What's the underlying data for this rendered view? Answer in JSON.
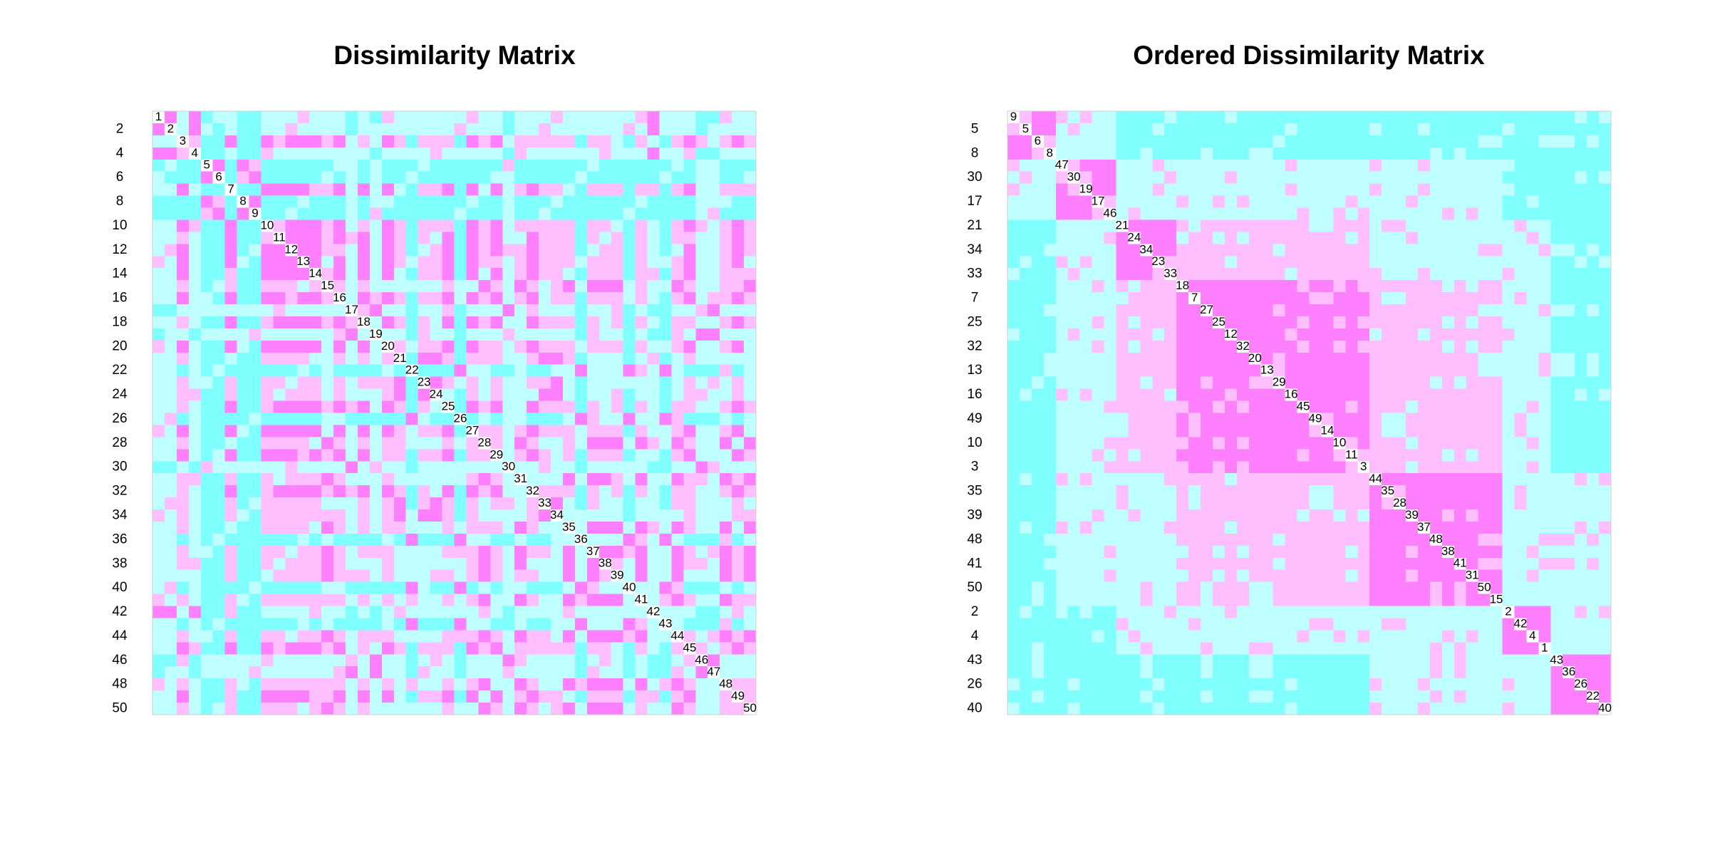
{
  "chart_data": [
    {
      "type": "dissplot",
      "title": "Dissimilarity Matrix",
      "labels": [
        1,
        2,
        3,
        4,
        5,
        6,
        7,
        8,
        9,
        10,
        11,
        12,
        13,
        14,
        15,
        16,
        17,
        18,
        19,
        20,
        21,
        22,
        23,
        24,
        25,
        26,
        27,
        28,
        29,
        30,
        31,
        32,
        33,
        34,
        35,
        36,
        37,
        38,
        39,
        40,
        41,
        42,
        43,
        44,
        45,
        46,
        47,
        48,
        49,
        50
      ],
      "colors": [
        "#ff80ff",
        "#ffbfff",
        "#bfffff",
        "#80ffff"
      ],
      "matrix": [
        [
          1,
          3,
          1,
          4,
          3,
          3,
          4,
          4,
          3,
          3,
          3,
          2,
          3,
          3,
          3,
          4,
          3,
          4,
          2,
          3,
          3,
          3,
          3,
          3,
          3,
          2,
          3,
          3,
          4,
          3,
          3,
          3,
          2,
          3,
          3,
          3,
          3,
          3,
          3,
          2,
          1,
          3,
          3,
          3,
          4,
          4,
          2,
          3,
          3
        ],
        [
          3,
          1,
          3,
          4,
          3,
          4,
          4,
          3,
          3,
          2,
          3,
          3,
          3,
          3,
          4,
          3,
          3,
          3,
          3,
          3,
          3,
          3,
          3,
          2,
          3,
          3,
          3,
          4,
          3,
          3,
          2,
          3,
          3,
          3,
          3,
          3,
          3,
          2,
          3,
          1,
          3,
          3,
          3,
          4,
          3,
          3,
          3,
          3
        ],
        [
          2,
          4,
          4,
          1,
          4,
          4,
          1,
          2,
          1,
          1,
          1,
          2,
          1,
          3,
          2,
          3,
          1,
          2,
          4,
          2,
          2,
          2,
          4,
          1,
          2,
          1,
          3,
          2,
          2,
          2,
          2,
          2,
          4,
          2,
          2,
          3,
          4,
          2,
          3,
          4,
          2,
          1,
          2,
          3,
          2,
          1,
          2
        ],
        [
          4,
          4,
          3,
          4,
          4,
          2,
          3,
          3,
          3,
          3,
          3,
          3,
          3,
          3,
          4,
          3,
          3,
          3,
          3,
          2,
          3,
          3,
          3,
          3,
          3,
          4,
          2,
          3,
          3,
          3,
          3,
          3,
          3,
          2,
          3,
          3,
          3,
          1,
          3,
          3,
          2,
          4,
          4,
          3,
          3,
          3
        ],
        [
          1,
          4,
          1,
          2,
          4,
          4,
          4,
          4,
          4,
          4,
          3,
          3,
          4,
          3,
          4,
          4,
          4,
          3,
          4,
          4,
          4,
          4,
          4,
          4,
          2,
          4,
          4,
          4,
          4,
          4,
          4,
          3,
          4,
          4,
          4,
          4,
          4,
          4,
          3,
          4,
          3,
          3,
          4,
          4,
          4
        ],
        [
          4,
          2,
          1,
          4,
          4,
          4,
          4,
          4,
          3,
          4,
          3,
          4,
          3,
          4,
          4,
          3,
          4,
          4,
          4,
          4,
          4,
          4,
          3,
          3,
          4,
          4,
          4,
          4,
          4,
          3,
          4,
          4,
          4,
          4,
          4,
          4,
          3,
          4,
          4,
          3,
          3,
          4,
          4,
          3
        ],
        [
          4,
          4,
          1,
          1,
          1,
          1,
          2,
          2,
          1,
          3,
          1,
          3,
          1,
          3,
          4,
          2,
          2,
          1,
          4,
          1,
          3,
          1,
          3,
          2,
          1,
          2,
          2,
          3,
          4,
          2,
          2,
          2,
          4,
          2,
          2,
          4,
          2,
          1,
          3,
          3,
          2,
          2,
          2
        ],
        [
          1,
          4,
          4,
          4,
          3,
          4,
          4,
          4,
          3,
          4,
          3,
          3,
          4,
          4,
          4,
          4,
          4,
          4,
          3,
          4,
          4,
          3,
          4,
          4,
          4,
          3,
          4,
          4,
          4,
          4,
          4,
          4,
          3,
          4,
          4,
          4,
          4,
          3,
          3,
          3,
          4,
          4
        ],
        [
          4,
          4,
          3,
          4,
          4,
          4,
          4,
          3,
          4,
          2,
          4,
          4,
          4,
          4,
          4,
          4,
          3,
          4,
          4,
          4,
          3,
          4,
          4,
          3,
          4,
          4,
          4,
          4,
          4,
          4,
          3,
          4,
          4,
          4,
          4,
          4,
          3,
          2,
          4,
          4,
          4
        ],
        [
          2,
          1,
          1,
          1,
          2,
          1,
          3,
          2,
          3,
          1,
          2,
          4,
          2,
          2,
          2,
          4,
          1,
          2,
          1,
          3,
          2,
          2,
          2,
          2,
          2,
          4,
          2,
          2,
          3,
          4,
          2,
          3,
          4,
          2,
          1,
          2,
          3,
          2,
          1,
          2
        ],
        [
          1,
          1,
          1,
          2,
          1,
          2,
          1,
          3,
          1,
          2,
          4,
          2,
          3,
          1,
          4,
          1,
          2,
          1,
          3,
          3,
          1,
          2,
          2,
          2,
          4,
          2,
          3,
          2,
          4,
          2,
          3,
          4,
          2,
          2,
          3,
          3,
          2,
          1,
          2
        ],
        [
          1,
          1,
          2,
          2,
          3,
          1,
          3,
          1,
          2,
          4,
          3,
          2,
          1,
          4,
          1,
          2,
          1,
          2,
          2,
          1,
          2,
          2,
          2,
          4,
          3,
          2,
          2,
          4,
          2,
          3,
          4,
          3,
          1,
          3,
          3,
          2,
          1,
          2
        ],
        [
          1,
          3,
          1,
          3,
          1,
          3,
          1,
          2,
          3,
          2,
          2,
          1,
          4,
          1,
          2,
          2,
          3,
          2,
          1,
          2,
          2,
          2,
          3,
          2,
          2,
          2,
          4,
          2,
          3,
          3,
          2,
          1,
          3,
          3,
          2,
          1,
          3
        ],
        [
          2,
          1,
          3,
          1,
          3,
          1,
          3,
          4,
          2,
          2,
          1,
          4,
          1,
          3,
          1,
          3,
          2,
          1,
          2,
          2,
          3,
          4,
          2,
          2,
          2,
          4,
          2,
          2,
          4,
          2,
          1,
          3,
          3,
          2,
          2,
          2
        ],
        [
          2,
          3,
          2,
          3,
          3,
          3,
          3,
          3,
          3,
          2,
          3,
          3,
          1,
          2,
          3,
          1,
          2,
          3,
          2,
          1,
          3,
          1,
          1,
          1,
          3,
          2,
          3,
          3,
          1,
          2,
          3,
          3,
          2,
          2,
          1
        ],
        [
          3,
          1,
          2,
          1,
          2,
          4,
          2,
          2,
          1,
          3,
          1,
          2,
          1,
          3,
          2,
          1,
          3,
          2,
          2,
          4,
          2,
          2,
          2,
          3,
          2,
          3,
          4,
          2,
          1,
          3,
          2,
          2,
          1,
          2
        ],
        [
          2,
          1,
          3,
          3,
          4,
          3,
          3,
          2,
          4,
          3,
          3,
          3,
          1,
          3,
          2,
          3,
          3,
          3,
          4,
          3,
          3,
          2,
          4,
          3,
          4,
          4,
          3,
          3,
          2,
          1,
          3,
          3,
          3
        ],
        [
          3,
          1,
          2,
          4,
          2,
          3,
          1,
          4,
          1,
          2,
          1,
          3,
          3,
          1,
          2,
          2,
          2,
          4,
          2,
          3,
          2,
          4,
          2,
          3,
          4,
          2,
          2,
          3,
          3,
          2,
          1,
          2
        ],
        [
          3,
          3,
          4,
          2,
          3,
          3,
          4,
          3,
          3,
          3,
          2,
          3,
          3,
          3,
          3,
          3,
          4,
          2,
          3,
          3,
          4,
          3,
          4,
          4,
          2,
          3,
          1,
          1,
          3,
          3,
          3
        ],
        [
          2,
          3,
          2,
          2,
          1,
          4,
          1,
          2,
          2,
          3,
          2,
          1,
          2,
          2,
          2,
          3,
          2,
          2,
          2,
          4,
          2,
          3,
          3,
          2,
          1,
          3,
          3,
          2,
          1,
          3
        ],
        [
          4,
          1,
          1,
          2,
          4,
          2,
          2,
          2,
          3,
          3,
          2,
          1,
          1,
          2,
          4,
          3,
          3,
          3,
          4,
          3,
          2,
          4,
          3,
          2,
          3,
          3,
          3,
          3,
          3
        ],
        [
          4,
          4,
          4,
          1,
          3,
          3,
          4,
          4,
          3,
          4,
          4,
          3,
          3,
          1,
          3,
          3,
          3,
          1,
          2,
          3,
          1,
          3,
          4,
          4,
          4,
          2,
          4,
          3
        ],
        [
          1,
          2,
          3,
          2,
          3,
          2,
          3,
          3,
          2,
          2,
          1,
          3,
          4,
          3,
          3,
          3,
          3,
          3,
          3,
          4,
          3,
          2,
          3,
          2,
          3,
          2,
          3
        ],
        [
          3,
          4,
          2,
          3,
          2,
          3,
          3,
          3,
          1,
          1,
          3,
          4,
          3,
          3,
          2,
          4,
          3,
          3,
          4,
          3,
          2,
          2,
          3,
          3,
          2,
          3
        ],
        [
          4,
          1,
          2,
          1,
          3,
          3,
          1,
          2,
          2,
          2,
          4,
          2,
          3,
          2,
          4,
          2,
          3,
          4,
          2,
          2,
          3,
          3,
          2,
          1,
          2
        ],
        [
          4,
          3,
          4,
          3,
          3,
          4,
          4,
          4,
          3,
          1,
          2,
          3,
          3,
          1,
          3,
          3,
          1,
          2,
          4,
          4,
          4,
          3,
          4,
          3
        ],
        [
          2,
          2,
          3,
          2,
          1,
          2,
          2,
          2,
          3,
          2,
          2,
          2,
          4,
          2,
          3,
          3,
          2,
          1,
          3,
          3,
          2,
          1,
          3
        ],
        [
          2,
          3,
          1,
          2,
          3,
          3,
          2,
          3,
          1,
          1,
          1,
          3,
          1,
          2,
          3,
          1,
          2,
          3,
          3,
          1,
          3,
          1
        ],
        [
          3,
          2,
          1,
          2,
          3,
          2,
          4,
          2,
          2,
          2,
          4,
          3,
          3,
          4,
          2,
          1,
          3,
          3,
          3,
          1,
          2
        ],
        [
          3,
          3,
          2,
          3,
          3,
          4,
          3,
          3,
          3,
          3,
          3,
          4,
          4,
          3,
          3,
          1,
          2,
          3,
          3,
          3
        ],
        [
          3,
          3,
          3,
          1,
          3,
          1,
          1,
          2,
          3,
          1,
          3,
          3,
          1,
          2,
          2,
          3,
          1,
          2,
          1
        ],
        [
          2,
          2,
          2,
          4,
          2,
          3,
          2,
          4,
          2,
          3,
          4,
          2,
          2,
          3,
          3,
          2,
          1,
          2
        ],
        [
          1,
          3,
          4,
          2,
          3,
          3,
          4,
          3,
          3,
          4,
          2,
          2,
          3,
          3,
          3,
          2,
          3
        ],
        [
          3,
          3,
          3,
          3,
          3,
          4,
          3,
          3,
          3,
          3,
          2,
          3,
          3,
          3,
          2,
          2
        ],
        [
          3,
          1,
          1,
          1,
          3,
          1,
          2,
          3,
          1,
          2,
          3,
          3,
          1,
          3,
          1
        ],
        [
          3,
          3,
          3,
          1,
          2,
          3,
          1,
          3,
          4,
          4,
          4,
          2,
          4,
          3
        ],
        [
          1,
          1,
          2,
          1,
          3,
          3,
          1,
          2,
          3,
          2,
          1,
          2,
          1
        ],
        [
          2,
          3,
          1,
          3,
          3,
          1,
          2,
          2,
          3,
          1,
          2,
          1
        ],
        [
          3,
          1,
          3,
          3,
          1,
          3,
          3,
          3,
          1,
          2,
          1
        ],
        [
          3,
          3,
          1,
          2,
          4,
          4,
          4,
          3,
          4,
          3
        ],
        [
          3,
          2,
          1,
          2,
          3,
          3,
          1,
          2,
          2
        ],
        [
          3,
          3,
          3,
          4,
          4,
          3,
          2,
          3
        ],
        [
          3,
          4,
          4,
          4,
          2,
          4,
          3
        ],
        [
          2,
          3,
          2,
          1,
          2,
          1
        ],
        [
          2,
          3,
          2,
          1,
          2
        ],
        [
          1,
          3,
          3,
          3
        ],
        [
          3,
          3,
          3
        ],
        [
          2,
          2
        ],
        [
          2
        ]
      ]
    },
    {
      "type": "dissplot",
      "title": "Ordered Dissimilarity Matrix",
      "order": [
        9,
        5,
        6,
        8,
        47,
        30,
        19,
        17,
        46,
        21,
        24,
        34,
        23,
        33,
        18,
        7,
        27,
        25,
        12,
        32,
        20,
        13,
        29,
        16,
        45,
        49,
        14,
        10,
        11,
        3,
        44,
        35,
        28,
        39,
        37,
        48,
        38,
        41,
        31,
        50,
        15,
        2,
        42,
        4,
        1,
        43,
        36,
        26,
        22,
        40
      ]
    }
  ]
}
